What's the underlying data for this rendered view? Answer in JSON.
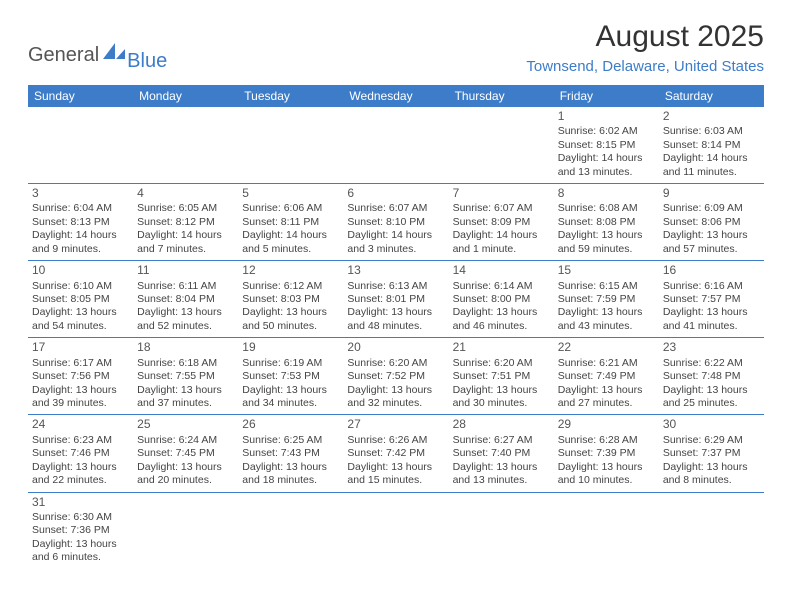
{
  "logo": {
    "text_general": "General",
    "text_blue": "Blue",
    "general_color": "#555555",
    "blue_color": "#3d7cc9",
    "shape_color": "#3d7cc9"
  },
  "header": {
    "month_title": "August 2025",
    "location": "Townsend, Delaware, United States",
    "title_color": "#333333",
    "location_color": "#3d7cc9",
    "title_fontsize": 30,
    "location_fontsize": 15
  },
  "calendar": {
    "header_bg": "#3d7cc9",
    "header_fg": "#ffffff",
    "cell_border_color": "#3d7cc9",
    "cell_fontsize": 10.5,
    "daynum_fontsize": 12,
    "days_of_week": [
      "Sunday",
      "Monday",
      "Tuesday",
      "Wednesday",
      "Thursday",
      "Friday",
      "Saturday"
    ],
    "weeks": [
      [
        null,
        null,
        null,
        null,
        null,
        {
          "n": "1",
          "sr": "Sunrise: 6:02 AM",
          "ss": "Sunset: 8:15 PM",
          "dl": "Daylight: 14 hours and 13 minutes."
        },
        {
          "n": "2",
          "sr": "Sunrise: 6:03 AM",
          "ss": "Sunset: 8:14 PM",
          "dl": "Daylight: 14 hours and 11 minutes."
        }
      ],
      [
        {
          "n": "3",
          "sr": "Sunrise: 6:04 AM",
          "ss": "Sunset: 8:13 PM",
          "dl": "Daylight: 14 hours and 9 minutes."
        },
        {
          "n": "4",
          "sr": "Sunrise: 6:05 AM",
          "ss": "Sunset: 8:12 PM",
          "dl": "Daylight: 14 hours and 7 minutes."
        },
        {
          "n": "5",
          "sr": "Sunrise: 6:06 AM",
          "ss": "Sunset: 8:11 PM",
          "dl": "Daylight: 14 hours and 5 minutes."
        },
        {
          "n": "6",
          "sr": "Sunrise: 6:07 AM",
          "ss": "Sunset: 8:10 PM",
          "dl": "Daylight: 14 hours and 3 minutes."
        },
        {
          "n": "7",
          "sr": "Sunrise: 6:07 AM",
          "ss": "Sunset: 8:09 PM",
          "dl": "Daylight: 14 hours and 1 minute."
        },
        {
          "n": "8",
          "sr": "Sunrise: 6:08 AM",
          "ss": "Sunset: 8:08 PM",
          "dl": "Daylight: 13 hours and 59 minutes."
        },
        {
          "n": "9",
          "sr": "Sunrise: 6:09 AM",
          "ss": "Sunset: 8:06 PM",
          "dl": "Daylight: 13 hours and 57 minutes."
        }
      ],
      [
        {
          "n": "10",
          "sr": "Sunrise: 6:10 AM",
          "ss": "Sunset: 8:05 PM",
          "dl": "Daylight: 13 hours and 54 minutes."
        },
        {
          "n": "11",
          "sr": "Sunrise: 6:11 AM",
          "ss": "Sunset: 8:04 PM",
          "dl": "Daylight: 13 hours and 52 minutes."
        },
        {
          "n": "12",
          "sr": "Sunrise: 6:12 AM",
          "ss": "Sunset: 8:03 PM",
          "dl": "Daylight: 13 hours and 50 minutes."
        },
        {
          "n": "13",
          "sr": "Sunrise: 6:13 AM",
          "ss": "Sunset: 8:01 PM",
          "dl": "Daylight: 13 hours and 48 minutes."
        },
        {
          "n": "14",
          "sr": "Sunrise: 6:14 AM",
          "ss": "Sunset: 8:00 PM",
          "dl": "Daylight: 13 hours and 46 minutes."
        },
        {
          "n": "15",
          "sr": "Sunrise: 6:15 AM",
          "ss": "Sunset: 7:59 PM",
          "dl": "Daylight: 13 hours and 43 minutes."
        },
        {
          "n": "16",
          "sr": "Sunrise: 6:16 AM",
          "ss": "Sunset: 7:57 PM",
          "dl": "Daylight: 13 hours and 41 minutes."
        }
      ],
      [
        {
          "n": "17",
          "sr": "Sunrise: 6:17 AM",
          "ss": "Sunset: 7:56 PM",
          "dl": "Daylight: 13 hours and 39 minutes."
        },
        {
          "n": "18",
          "sr": "Sunrise: 6:18 AM",
          "ss": "Sunset: 7:55 PM",
          "dl": "Daylight: 13 hours and 37 minutes."
        },
        {
          "n": "19",
          "sr": "Sunrise: 6:19 AM",
          "ss": "Sunset: 7:53 PM",
          "dl": "Daylight: 13 hours and 34 minutes."
        },
        {
          "n": "20",
          "sr": "Sunrise: 6:20 AM",
          "ss": "Sunset: 7:52 PM",
          "dl": "Daylight: 13 hours and 32 minutes."
        },
        {
          "n": "21",
          "sr": "Sunrise: 6:20 AM",
          "ss": "Sunset: 7:51 PM",
          "dl": "Daylight: 13 hours and 30 minutes."
        },
        {
          "n": "22",
          "sr": "Sunrise: 6:21 AM",
          "ss": "Sunset: 7:49 PM",
          "dl": "Daylight: 13 hours and 27 minutes."
        },
        {
          "n": "23",
          "sr": "Sunrise: 6:22 AM",
          "ss": "Sunset: 7:48 PM",
          "dl": "Daylight: 13 hours and 25 minutes."
        }
      ],
      [
        {
          "n": "24",
          "sr": "Sunrise: 6:23 AM",
          "ss": "Sunset: 7:46 PM",
          "dl": "Daylight: 13 hours and 22 minutes."
        },
        {
          "n": "25",
          "sr": "Sunrise: 6:24 AM",
          "ss": "Sunset: 7:45 PM",
          "dl": "Daylight: 13 hours and 20 minutes."
        },
        {
          "n": "26",
          "sr": "Sunrise: 6:25 AM",
          "ss": "Sunset: 7:43 PM",
          "dl": "Daylight: 13 hours and 18 minutes."
        },
        {
          "n": "27",
          "sr": "Sunrise: 6:26 AM",
          "ss": "Sunset: 7:42 PM",
          "dl": "Daylight: 13 hours and 15 minutes."
        },
        {
          "n": "28",
          "sr": "Sunrise: 6:27 AM",
          "ss": "Sunset: 7:40 PM",
          "dl": "Daylight: 13 hours and 13 minutes."
        },
        {
          "n": "29",
          "sr": "Sunrise: 6:28 AM",
          "ss": "Sunset: 7:39 PM",
          "dl": "Daylight: 13 hours and 10 minutes."
        },
        {
          "n": "30",
          "sr": "Sunrise: 6:29 AM",
          "ss": "Sunset: 7:37 PM",
          "dl": "Daylight: 13 hours and 8 minutes."
        }
      ],
      [
        {
          "n": "31",
          "sr": "Sunrise: 6:30 AM",
          "ss": "Sunset: 7:36 PM",
          "dl": "Daylight: 13 hours and 6 minutes."
        },
        null,
        null,
        null,
        null,
        null,
        null
      ]
    ]
  }
}
